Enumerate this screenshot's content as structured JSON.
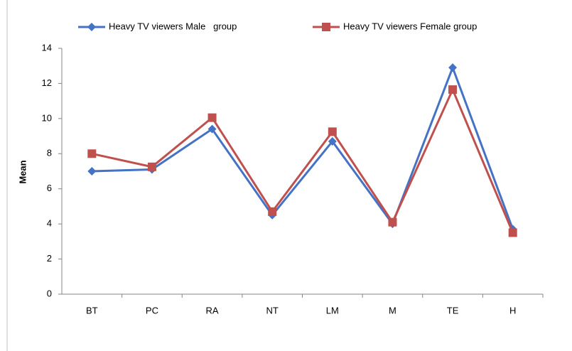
{
  "chart_data": {
    "type": "line",
    "categories": [
      "BT",
      "PC",
      "RA",
      "NT",
      "LM",
      "M",
      "TE",
      "H"
    ],
    "series": [
      {
        "name": "Heavy TV viewers Male   group",
        "color": "#4472c4",
        "marker": "diamond",
        "values": [
          7.0,
          7.1,
          9.4,
          4.5,
          8.7,
          4.0,
          12.9,
          3.7
        ]
      },
      {
        "name": "Heavy TV viewers Female group",
        "color": "#c0504d",
        "marker": "square",
        "values": [
          8.0,
          7.25,
          10.05,
          4.7,
          9.25,
          4.1,
          11.65,
          3.5
        ]
      }
    ],
    "y_label": "Mean",
    "ylim": [
      0,
      14
    ],
    "yticks": [
      0,
      2,
      4,
      6,
      8,
      10,
      12,
      14
    ],
    "legend": "top"
  }
}
